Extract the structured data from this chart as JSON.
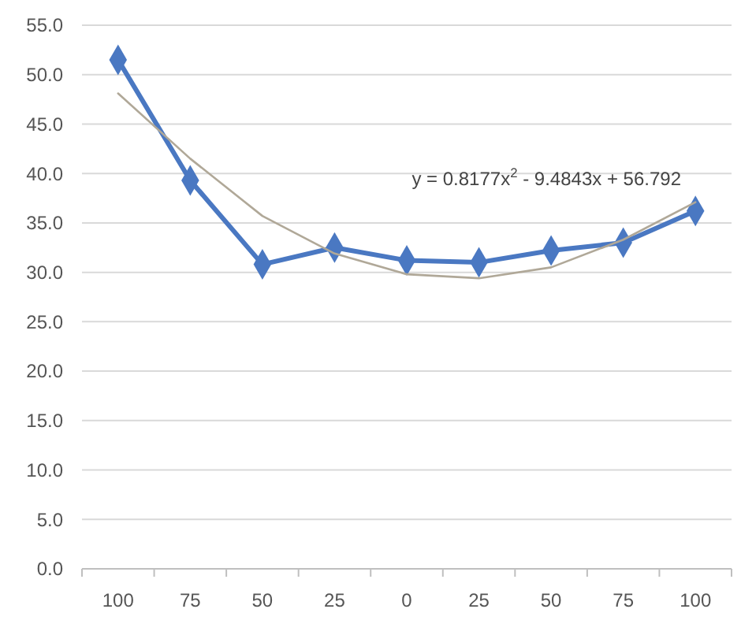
{
  "chart_data": {
    "type": "line",
    "categories": [
      "100",
      "75",
      "50",
      "25",
      "0",
      "25",
      "50",
      "75",
      "100"
    ],
    "series": [
      {
        "color": "#4a78c2",
        "values": [
          51.5,
          39.3,
          30.8,
          32.5,
          31.2,
          31.0,
          32.2,
          33.0,
          36.2
        ],
        "marker": "diamond"
      },
      {
        "type": "line",
        "color": "#b0a898",
        "values": [
          48.1,
          41.5,
          35.7,
          31.9,
          29.8,
          29.4,
          30.5,
          33.3,
          37.1
        ],
        "marker": "none"
      }
    ],
    "ylim": [
      0,
      55
    ],
    "yticks": [
      {
        "value": 0,
        "label": "0.0"
      },
      {
        "value": 5,
        "label": "5.0"
      },
      {
        "value": 10,
        "label": "10.0"
      },
      {
        "value": 15,
        "label": "15.0"
      },
      {
        "value": 20,
        "label": "20.0"
      },
      {
        "value": 25,
        "label": "25.0"
      },
      {
        "value": 30,
        "label": "30.0"
      },
      {
        "value": 35,
        "label": "35.0"
      },
      {
        "value": 40,
        "label": "40.0"
      },
      {
        "value": 45,
        "label": "45.0"
      },
      {
        "value": 50,
        "label": "50.0"
      },
      {
        "value": 55,
        "label": "55.0"
      }
    ],
    "grid": "y",
    "annotations": [
      "y = 0.8177x$^{2}$ - 9.4843x + 56.792"
    ]
  }
}
